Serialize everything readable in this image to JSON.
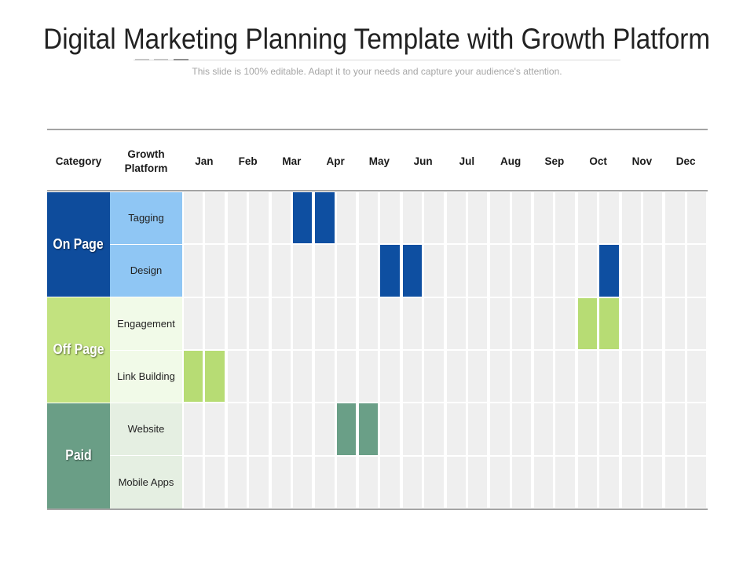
{
  "slide": {
    "title": "Digital Marketing Planning Template with Growth Platform",
    "subtitle": "This slide is 100% editable. Adapt it to your needs and capture your audience's attention."
  },
  "table": {
    "header": {
      "category": "Category",
      "platform": "Growth Platform"
    },
    "months": [
      "Jan",
      "Feb",
      "Mar",
      "Apr",
      "May",
      "Jun",
      "Jul",
      "Aug",
      "Sep",
      "Oct",
      "Nov",
      "Dec"
    ],
    "empty_cell_color": "#efefef",
    "groups": [
      {
        "category": "On Page",
        "color": "#0e4c9c",
        "bar_color": "#0e4fa1",
        "platform_color": "#8fc6f4",
        "platforms": [
          {
            "name": "Tagging",
            "active": [
              {
                "month": 3,
                "half": 2
              },
              {
                "month": 4,
                "half": 1
              }
            ]
          },
          {
            "name": "Design",
            "active": [
              {
                "month": 5,
                "half": 2
              },
              {
                "month": 6,
                "half": 1
              },
              {
                "month": 10,
                "half": 2
              }
            ]
          }
        ]
      },
      {
        "category": "Off Page",
        "color": "#c2e27f",
        "bar_color": "#b7dc74",
        "platform_color": "#f1fae8",
        "platforms": [
          {
            "name": "Engagement",
            "active": [
              {
                "month": 10,
                "half": 1
              },
              {
                "month": 10,
                "half": 2
              }
            ]
          },
          {
            "name": "Link Building",
            "active": [
              {
                "month": 1,
                "half": 1
              },
              {
                "month": 1,
                "half": 2
              }
            ]
          }
        ]
      },
      {
        "category": "Paid",
        "color": "#6a9e86",
        "bar_color": "#6a9f87",
        "platform_color": "#e5efe2",
        "platforms": [
          {
            "name": "Website",
            "active": [
              {
                "month": 4,
                "half": 2
              },
              {
                "month": 5,
                "half": 1
              }
            ]
          },
          {
            "name": "Mobile Apps",
            "active": []
          }
        ]
      }
    ]
  }
}
